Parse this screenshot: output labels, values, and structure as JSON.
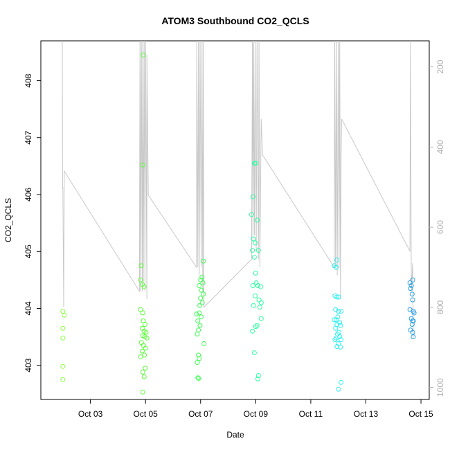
{
  "chart_data": {
    "type": "scatter",
    "title": "ATOM3 Southbound CO2_QCLS",
    "xlabel": "Date",
    "ylabel": "CO2_QCLS",
    "x_range_days": [
      1.2,
      15.3
    ],
    "x_ticks": [
      {
        "day": 3,
        "label": "Oct 03"
      },
      {
        "day": 5,
        "label": "Oct 05"
      },
      {
        "day": 7,
        "label": "Oct 07"
      },
      {
        "day": 9,
        "label": "Oct 09"
      },
      {
        "day": 11,
        "label": "Oct 11"
      },
      {
        "day": 13,
        "label": "Oct 13"
      },
      {
        "day": 15,
        "label": "Oct 15"
      }
    ],
    "ylim": [
      402.4,
      408.7
    ],
    "y_ticks": [
      403,
      404,
      405,
      406,
      407,
      408
    ],
    "secondary_axis": {
      "label": "",
      "range": [
        135,
        1030
      ],
      "inverted": true,
      "ticks": [
        200,
        400,
        600,
        800,
        1000
      ],
      "color": "#b0b0b0"
    },
    "series": [
      {
        "marker": "open-circle",
        "points": [
          {
            "day": 2.0,
            "co2": 403.95,
            "color": "#8cff3f"
          },
          {
            "day": 2.05,
            "co2": 403.88,
            "color": "#8cff3f"
          },
          {
            "day": 2.0,
            "co2": 403.65,
            "color": "#8cff3f"
          },
          {
            "day": 2.0,
            "co2": 403.48,
            "color": "#8cff3f"
          },
          {
            "day": 2.0,
            "co2": 402.98,
            "color": "#8cff3f"
          },
          {
            "day": 2.0,
            "co2": 402.75,
            "color": "#8cff3f"
          },
          {
            "day": 4.82,
            "co2": 403.98,
            "color": "#5cff3a"
          },
          {
            "day": 4.9,
            "co2": 403.92,
            "color": "#5cff3a"
          },
          {
            "day": 4.92,
            "co2": 403.78,
            "color": "#5cff3a"
          },
          {
            "day": 4.98,
            "co2": 403.72,
            "color": "#5cff3a"
          },
          {
            "day": 4.88,
            "co2": 403.65,
            "color": "#5cff3a"
          },
          {
            "day": 4.95,
            "co2": 403.6,
            "color": "#5cff3a"
          },
          {
            "day": 5.02,
            "co2": 403.58,
            "color": "#5cff3a"
          },
          {
            "day": 4.9,
            "co2": 403.52,
            "color": "#5cff3a"
          },
          {
            "day": 4.97,
            "co2": 403.5,
            "color": "#5cff3a"
          },
          {
            "day": 5.05,
            "co2": 403.48,
            "color": "#5cff3a"
          },
          {
            "day": 4.85,
            "co2": 403.4,
            "color": "#5cff3a"
          },
          {
            "day": 4.93,
            "co2": 403.35,
            "color": "#5cff3a"
          },
          {
            "day": 5.0,
            "co2": 403.3,
            "color": "#5cff3a"
          },
          {
            "day": 4.88,
            "co2": 403.25,
            "color": "#5cff3a"
          },
          {
            "day": 4.96,
            "co2": 403.18,
            "color": "#5cff3a"
          },
          {
            "day": 4.82,
            "co2": 403.15,
            "color": "#5cff3a"
          },
          {
            "day": 4.99,
            "co2": 402.95,
            "color": "#5cff3a"
          },
          {
            "day": 4.9,
            "co2": 402.88,
            "color": "#5cff3a"
          },
          {
            "day": 4.95,
            "co2": 402.8,
            "color": "#5cff3a"
          },
          {
            "day": 4.9,
            "co2": 402.53,
            "color": "#5cff3a"
          },
          {
            "day": 4.85,
            "co2": 404.75,
            "color": "#5cff3a"
          },
          {
            "day": 4.82,
            "co2": 404.5,
            "color": "#5cff3a"
          },
          {
            "day": 4.88,
            "co2": 404.42,
            "color": "#5cff3a"
          },
          {
            "day": 4.95,
            "co2": 404.38,
            "color": "#5cff3a"
          },
          {
            "day": 4.9,
            "co2": 406.52,
            "color": "#5cff3a"
          },
          {
            "day": 4.92,
            "co2": 408.45,
            "color": "#5cff3a"
          },
          {
            "day": 6.85,
            "co2": 403.9,
            "color": "#3cff50"
          },
          {
            "day": 6.95,
            "co2": 403.92,
            "color": "#3cff50"
          },
          {
            "day": 7.02,
            "co2": 403.85,
            "color": "#3cff50"
          },
          {
            "day": 6.9,
            "co2": 403.78,
            "color": "#3cff50"
          },
          {
            "day": 6.98,
            "co2": 403.7,
            "color": "#3cff50"
          },
          {
            "day": 6.92,
            "co2": 403.62,
            "color": "#3cff50"
          },
          {
            "day": 6.88,
            "co2": 403.55,
            "color": "#3cff50"
          },
          {
            "day": 7.05,
            "co2": 404.55,
            "color": "#3cff50"
          },
          {
            "day": 7.0,
            "co2": 404.5,
            "color": "#3cff50"
          },
          {
            "day": 7.08,
            "co2": 404.45,
            "color": "#3cff50"
          },
          {
            "day": 6.95,
            "co2": 404.4,
            "color": "#3cff50"
          },
          {
            "day": 7.03,
            "co2": 404.32,
            "color": "#3cff50"
          },
          {
            "day": 7.1,
            "co2": 404.25,
            "color": "#3cff50"
          },
          {
            "day": 7.0,
            "co2": 404.18,
            "color": "#3cff50"
          },
          {
            "day": 7.06,
            "co2": 404.1,
            "color": "#3cff50"
          },
          {
            "day": 6.97,
            "co2": 404.05,
            "color": "#3cff50"
          },
          {
            "day": 7.1,
            "co2": 404.83,
            "color": "#3cff50"
          },
          {
            "day": 7.12,
            "co2": 403.38,
            "color": "#3cff50"
          },
          {
            "day": 6.92,
            "co2": 403.18,
            "color": "#3cff50"
          },
          {
            "day": 6.95,
            "co2": 403.12,
            "color": "#3cff50"
          },
          {
            "day": 6.88,
            "co2": 403.05,
            "color": "#3cff50"
          },
          {
            "day": 6.9,
            "co2": 402.78,
            "color": "#3cff50"
          },
          {
            "day": 6.93,
            "co2": 402.77,
            "color": "#3cff50"
          },
          {
            "day": 8.9,
            "co2": 405.96,
            "color": "#2cffa0"
          },
          {
            "day": 8.85,
            "co2": 405.65,
            "color": "#2cffa0"
          },
          {
            "day": 8.95,
            "co2": 406.55,
            "color": "#2cffa0"
          },
          {
            "day": 9.0,
            "co2": 406.55,
            "color": "#2cffa0"
          },
          {
            "day": 9.05,
            "co2": 405.55,
            "color": "#2cffa0"
          },
          {
            "day": 8.92,
            "co2": 405.22,
            "color": "#2cffa0"
          },
          {
            "day": 8.98,
            "co2": 405.15,
            "color": "#2cffa0"
          },
          {
            "day": 8.88,
            "co2": 405.02,
            "color": "#2cffa0"
          },
          {
            "day": 9.1,
            "co2": 405.02,
            "color": "#2cffa0"
          },
          {
            "day": 8.95,
            "co2": 404.9,
            "color": "#2cffa0"
          },
          {
            "day": 9.0,
            "co2": 404.62,
            "color": "#2cffa0"
          },
          {
            "day": 9.02,
            "co2": 404.45,
            "color": "#2cffa0"
          },
          {
            "day": 9.08,
            "co2": 404.4,
            "color": "#2cffa0"
          },
          {
            "day": 8.9,
            "co2": 404.4,
            "color": "#2cffa0"
          },
          {
            "day": 9.18,
            "co2": 404.38,
            "color": "#2cffa0"
          },
          {
            "day": 8.98,
            "co2": 404.22,
            "color": "#2cffa0"
          },
          {
            "day": 9.12,
            "co2": 404.15,
            "color": "#2cffa0"
          },
          {
            "day": 9.2,
            "co2": 404.1,
            "color": "#2cffa0"
          },
          {
            "day": 8.92,
            "co2": 404.05,
            "color": "#2cffa0"
          },
          {
            "day": 9.15,
            "co2": 404.02,
            "color": "#2cffa0"
          },
          {
            "day": 9.2,
            "co2": 403.82,
            "color": "#2cffa0"
          },
          {
            "day": 9.05,
            "co2": 403.7,
            "color": "#2cffa0"
          },
          {
            "day": 9.0,
            "co2": 403.68,
            "color": "#2cffa0"
          },
          {
            "day": 8.88,
            "co2": 403.6,
            "color": "#2cffa0"
          },
          {
            "day": 8.95,
            "co2": 403.22,
            "color": "#2cffa0"
          },
          {
            "day": 9.1,
            "co2": 402.82,
            "color": "#2cffa0"
          },
          {
            "day": 9.08,
            "co2": 402.76,
            "color": "#2cffa0"
          },
          {
            "day": 11.85,
            "co2": 404.75,
            "color": "#2ff0f0"
          },
          {
            "day": 11.95,
            "co2": 404.85,
            "color": "#2ff0f0"
          },
          {
            "day": 11.92,
            "co2": 404.72,
            "color": "#2ff0f0"
          },
          {
            "day": 11.88,
            "co2": 404.22,
            "color": "#2ff0f0"
          },
          {
            "day": 11.95,
            "co2": 404.2,
            "color": "#2ff0f0"
          },
          {
            "day": 12.02,
            "co2": 404.2,
            "color": "#2ff0f0"
          },
          {
            "day": 11.9,
            "co2": 403.98,
            "color": "#2ff0f0"
          },
          {
            "day": 12.0,
            "co2": 403.95,
            "color": "#2ff0f0"
          },
          {
            "day": 12.1,
            "co2": 403.95,
            "color": "#2ff0f0"
          },
          {
            "day": 11.98,
            "co2": 403.85,
            "color": "#2ff0f0"
          },
          {
            "day": 11.92,
            "co2": 403.8,
            "color": "#2ff0f0"
          },
          {
            "day": 11.85,
            "co2": 403.8,
            "color": "#2ff0f0"
          },
          {
            "day": 12.05,
            "co2": 403.75,
            "color": "#2ff0f0"
          },
          {
            "day": 11.95,
            "co2": 403.72,
            "color": "#2ff0f0"
          },
          {
            "day": 12.08,
            "co2": 403.7,
            "color": "#2ff0f0"
          },
          {
            "day": 11.9,
            "co2": 403.65,
            "color": "#2ff0f0"
          },
          {
            "day": 12.02,
            "co2": 403.58,
            "color": "#2ff0f0"
          },
          {
            "day": 11.97,
            "co2": 403.55,
            "color": "#2ff0f0"
          },
          {
            "day": 12.05,
            "co2": 403.5,
            "color": "#2ff0f0"
          },
          {
            "day": 11.88,
            "co2": 403.45,
            "color": "#2ff0f0"
          },
          {
            "day": 11.92,
            "co2": 403.48,
            "color": "#2ff0f0"
          },
          {
            "day": 12.1,
            "co2": 403.45,
            "color": "#2ff0f0"
          },
          {
            "day": 12.0,
            "co2": 403.38,
            "color": "#2ff0f0"
          },
          {
            "day": 11.95,
            "co2": 403.33,
            "color": "#2ff0f0"
          },
          {
            "day": 12.08,
            "co2": 403.32,
            "color": "#2ff0f0"
          },
          {
            "day": 12.1,
            "co2": 402.7,
            "color": "#2ff0f0"
          },
          {
            "day": 12.0,
            "co2": 402.58,
            "color": "#2ff0f0"
          },
          {
            "day": 14.6,
            "co2": 404.45,
            "color": "#2aa0e8"
          },
          {
            "day": 14.7,
            "co2": 404.5,
            "color": "#2aa0e8"
          },
          {
            "day": 14.65,
            "co2": 404.4,
            "color": "#2aa0e8"
          },
          {
            "day": 14.62,
            "co2": 404.35,
            "color": "#2aa0e8"
          },
          {
            "day": 14.68,
            "co2": 404.25,
            "color": "#2aa0e8"
          },
          {
            "day": 14.7,
            "co2": 404.15,
            "color": "#2aa0e8"
          },
          {
            "day": 14.6,
            "co2": 403.98,
            "color": "#2aa0e8"
          },
          {
            "day": 14.72,
            "co2": 403.95,
            "color": "#2aa0e8"
          },
          {
            "day": 14.75,
            "co2": 403.92,
            "color": "#2aa0e8"
          },
          {
            "day": 14.65,
            "co2": 403.82,
            "color": "#2aa0e8"
          },
          {
            "day": 14.7,
            "co2": 403.78,
            "color": "#2aa0e8"
          },
          {
            "day": 14.72,
            "co2": 403.78,
            "color": "#2aa0e8"
          },
          {
            "day": 14.68,
            "co2": 403.72,
            "color": "#2aa0e8"
          },
          {
            "day": 14.62,
            "co2": 403.62,
            "color": "#2aa0e8"
          },
          {
            "day": 14.7,
            "co2": 403.58,
            "color": "#2aa0e8"
          },
          {
            "day": 14.72,
            "co2": 403.5,
            "color": "#2aa0e8"
          }
        ]
      },
      {
        "marker": "line",
        "axis": "secondary",
        "color": "#c8c8c8",
        "points": [
          [
            1.98,
            135
          ],
          [
            1.99,
            505
          ],
          [
            2.0,
            500
          ],
          [
            2.03,
            800
          ],
          [
            2.05,
            460
          ],
          [
            4.78,
            760
          ],
          [
            4.8,
            135
          ],
          [
            4.82,
            760
          ],
          [
            4.85,
            135
          ],
          [
            4.88,
            760
          ],
          [
            4.9,
            135
          ],
          [
            4.92,
            740
          ],
          [
            4.95,
            135
          ],
          [
            4.98,
            760
          ],
          [
            5.0,
            135
          ],
          [
            5.05,
            780
          ],
          [
            5.05,
            170
          ],
          [
            5.1,
            520
          ],
          [
            6.85,
            700
          ],
          [
            6.86,
            135
          ],
          [
            6.9,
            700
          ],
          [
            6.92,
            135
          ],
          [
            6.95,
            720
          ],
          [
            6.98,
            135
          ],
          [
            7.02,
            700
          ],
          [
            7.05,
            135
          ],
          [
            7.08,
            760
          ],
          [
            7.1,
            135
          ],
          [
            7.12,
            800
          ],
          [
            8.85,
            680
          ],
          [
            8.88,
            135
          ],
          [
            8.9,
            640
          ],
          [
            8.92,
            135
          ],
          [
            8.95,
            620
          ],
          [
            8.98,
            135
          ],
          [
            9.02,
            660
          ],
          [
            9.05,
            135
          ],
          [
            9.1,
            680
          ],
          [
            9.12,
            135
          ],
          [
            9.15,
            700
          ],
          [
            9.2,
            330
          ],
          [
            9.25,
            420
          ],
          [
            11.85,
            700
          ],
          [
            11.87,
            135
          ],
          [
            11.9,
            700
          ],
          [
            11.93,
            135
          ],
          [
            11.96,
            720
          ],
          [
            12.0,
            135
          ],
          [
            12.03,
            700
          ],
          [
            12.05,
            135
          ],
          [
            12.08,
            780
          ],
          [
            12.1,
            430
          ],
          [
            12.12,
            330
          ],
          [
            14.6,
            660
          ],
          [
            14.62,
            135
          ],
          [
            14.65,
            760
          ],
          [
            14.7,
            690
          ],
          [
            14.72,
            880
          ]
        ]
      }
    ]
  }
}
